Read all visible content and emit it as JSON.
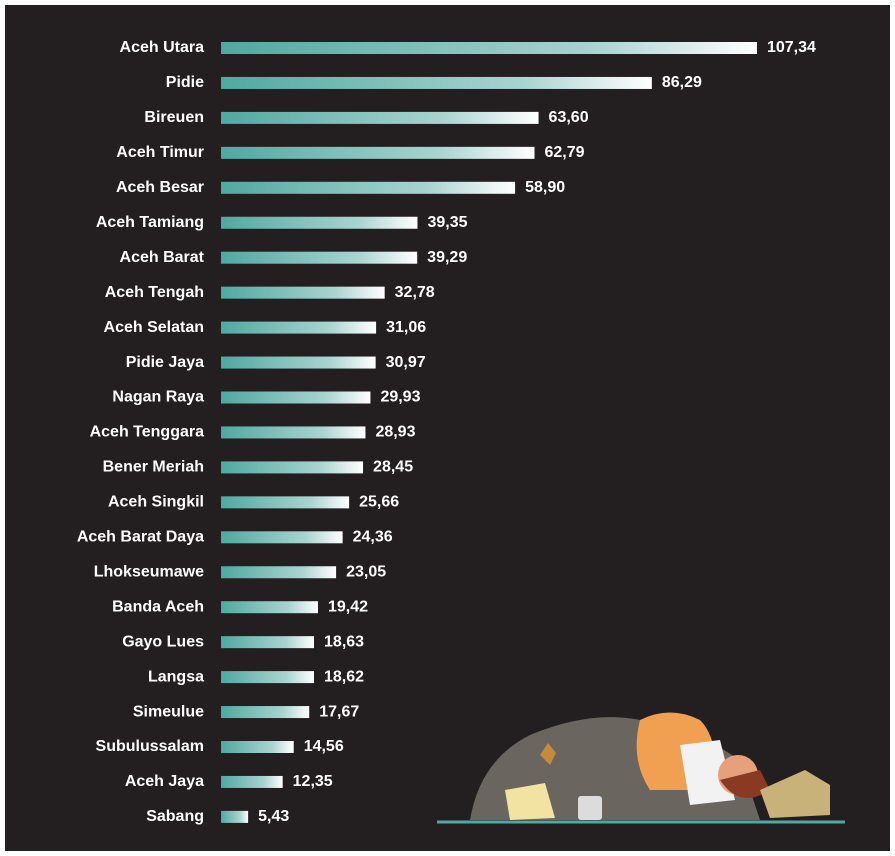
{
  "chart_data": {
    "type": "bar",
    "orientation": "horizontal",
    "color": "#4fa9a1",
    "categories": [
      "Aceh Utara",
      "Pidie",
      "Bireuen",
      "Aceh Timur",
      "Aceh Besar",
      "Aceh Tamiang",
      "Aceh Barat",
      "Aceh Tengah",
      "Aceh Selatan",
      "Pidie Jaya",
      "Nagan Raya",
      "Aceh Tenggara",
      "Bener Meriah",
      "Aceh Singkil",
      "Aceh Barat Daya",
      "Lhokseumawe",
      "Banda Aceh",
      "Gayo Lues",
      "Langsa",
      "Simeulue",
      "Subulussalam",
      "Aceh Jaya",
      "Sabang"
    ],
    "values": [
      107.34,
      86.29,
      63.6,
      62.79,
      58.9,
      39.35,
      39.29,
      32.78,
      31.06,
      30.97,
      29.93,
      28.93,
      28.45,
      25.66,
      24.36,
      23.05,
      19.42,
      18.63,
      18.62,
      17.67,
      14.56,
      12.35,
      5.43
    ],
    "value_labels": [
      "107,34",
      "86,29",
      "63,60",
      "62,79",
      "58,90",
      "39,35",
      "39,29",
      "32,78",
      "31,06",
      "30,97",
      "29,93",
      "28,93",
      "28,45",
      "25,66",
      "24,36",
      "23,05",
      "19,42",
      "18,63",
      "18,62",
      "17,67",
      "14,56",
      "12,35",
      "5,43"
    ]
  }
}
